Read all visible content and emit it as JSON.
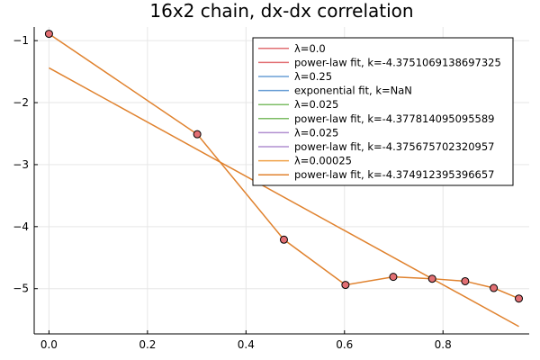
{
  "chart_data": {
    "type": "line",
    "title": "16x2 chain, dx-dx correlation",
    "xlabel": "",
    "ylabel": "",
    "xlim": [
      -0.03,
      0.975
    ],
    "ylim": [
      -5.73,
      -0.78
    ],
    "xticks": [
      0.0,
      0.2,
      0.4,
      0.6,
      0.8
    ],
    "xtick_labels": [
      "0.0",
      "0.2",
      "0.4",
      "0.6",
      "0.8"
    ],
    "yticks": [
      -1,
      -2,
      -3,
      -4,
      -5
    ],
    "ytick_labels": [
      "−1",
      "−2",
      "−3",
      "−4",
      "−5"
    ],
    "grid": true,
    "legend_position": "top-right",
    "points": {
      "x": [
        0.0,
        0.301,
        0.477,
        0.602,
        0.699,
        0.778,
        0.845,
        0.903,
        0.954
      ],
      "y": [
        -0.89,
        -2.51,
        -4.21,
        -4.94,
        -4.81,
        -4.84,
        -4.88,
        -4.99,
        -5.16
      ],
      "color": "#e26f73"
    },
    "series": [
      {
        "name": "λ=0.0",
        "color": "#e26f73",
        "kind": "data"
      },
      {
        "name": "power-law fit, k=-4.3751069138697325",
        "color": "#e26f73",
        "kind": "fit"
      },
      {
        "name": "λ=0.25",
        "color": "#6a9fd6",
        "kind": "none"
      },
      {
        "name": "exponential fit, k=NaN",
        "color": "#6a9fd6",
        "kind": "none"
      },
      {
        "name": "λ=0.025",
        "color": "#7dbd65",
        "kind": "data"
      },
      {
        "name": "power-law fit, k=-4.377814095095589",
        "color": "#7dbd65",
        "kind": "fit"
      },
      {
        "name": "λ=0.025",
        "color": "#b18fd0",
        "kind": "data"
      },
      {
        "name": "power-law fit, k=-4.375675702320957",
        "color": "#b18fd0",
        "kind": "fit"
      },
      {
        "name": "λ=0.00025",
        "color": "#f0a24a",
        "kind": "data"
      },
      {
        "name": "power-law fit, k=-4.374912395396657",
        "color": "#e0822e",
        "kind": "fit"
      }
    ],
    "visible_line_color": "#e0822e",
    "fit_line": {
      "x": [
        0.0,
        0.954
      ],
      "y": [
        -1.44,
        -5.61
      ]
    }
  }
}
